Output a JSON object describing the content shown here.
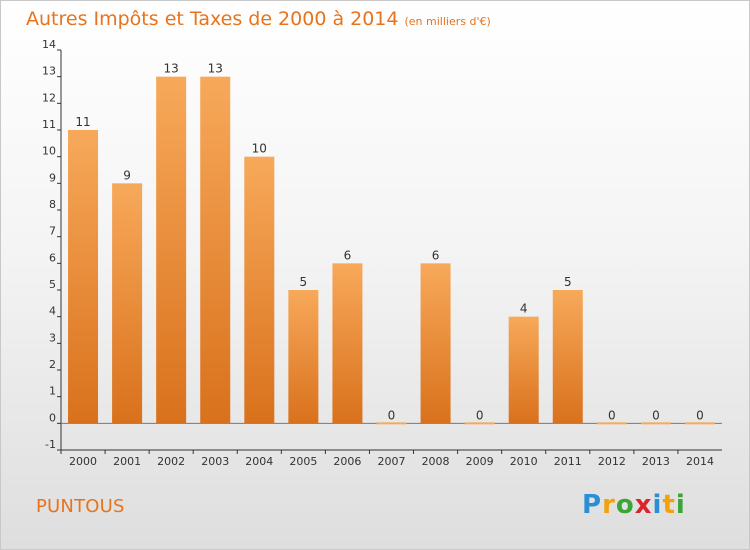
{
  "header": {
    "title": "Autres Impôts et Taxes de 2000 à 2014",
    "subtitle": "(en milliers d'€)"
  },
  "footer": {
    "place": "PUNTOUS",
    "logo_letters": [
      "P",
      "r",
      "o",
      "x",
      "i",
      "t",
      "i"
    ],
    "logo_colors": [
      "#2a8fd6",
      "#f2a20d",
      "#3aa635",
      "#d8262b",
      "#2a8fd6",
      "#f2a20d",
      "#3aa635"
    ]
  },
  "colors": {
    "bar_top": "#f7a95a",
    "bar_bottom": "#d9711c",
    "accent": "#e8731c"
  },
  "chart_data": {
    "type": "bar",
    "categories": [
      "2000",
      "2001",
      "2002",
      "2003",
      "2004",
      "2005",
      "2006",
      "2007",
      "2008",
      "2009",
      "2010",
      "2011",
      "2012",
      "2013",
      "2014"
    ],
    "values": [
      11,
      9,
      13,
      13,
      10,
      5,
      6,
      0,
      6,
      0,
      4,
      5,
      0,
      0,
      0
    ],
    "value_labels": [
      "11",
      "9",
      "13",
      "13",
      "10",
      "5",
      "6",
      "0",
      "6",
      "0",
      "4",
      "5",
      "0",
      "0",
      "0"
    ],
    "title": "Autres Impôts et Taxes de 2000 à 2014",
    "xlabel": "",
    "ylabel": "",
    "ylim": [
      -1,
      14
    ],
    "yticks": [
      -1,
      0,
      1,
      2,
      3,
      4,
      5,
      6,
      7,
      8,
      9,
      10,
      11,
      12,
      13,
      14
    ],
    "ytick_labels": [
      "-1",
      "0",
      "1",
      "2",
      "3",
      "4",
      "5",
      "6",
      "7",
      "8",
      "9",
      "10",
      "11",
      "12",
      "13",
      "14"
    ],
    "grid": false,
    "legend": "none"
  }
}
